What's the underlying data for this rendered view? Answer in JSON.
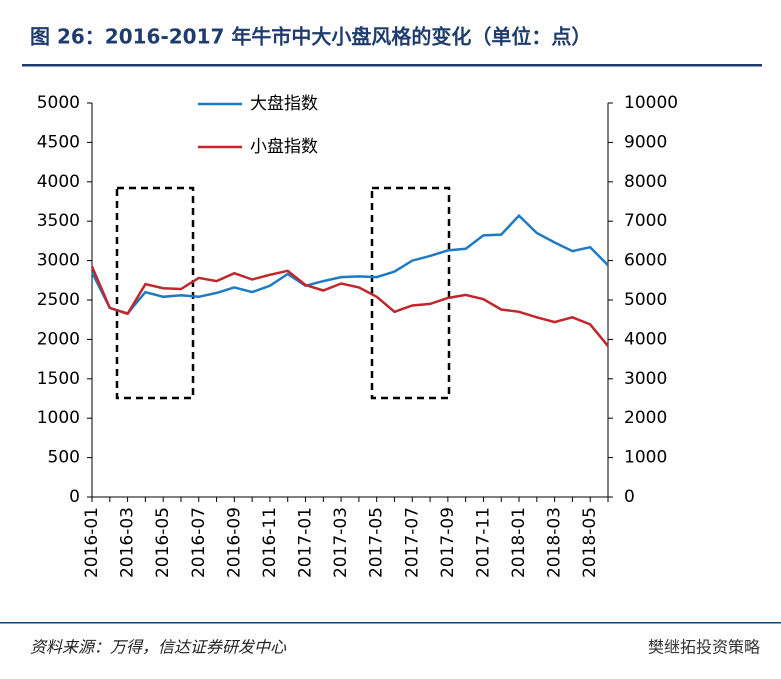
{
  "chart_data": {
    "type": "line",
    "title": "图 26：2016-2017 年牛市中大小盘风格的变化（单位：点）",
    "source": "资料来源：万得，信达证券研发中心",
    "watermark": "樊继拓投资策略",
    "categories": [
      "2016-01",
      null,
      "2016-03",
      null,
      "2016-05",
      null,
      "2016-07",
      null,
      "2016-09",
      null,
      "2016-11",
      null,
      "2017-01",
      null,
      "2017-03",
      null,
      "2017-05",
      null,
      "2017-07",
      null,
      "2017-09",
      null,
      "2017-11",
      null,
      "2018-01",
      null,
      "2018-03",
      null,
      "2018-05",
      null
    ],
    "series": [
      {
        "name": "大盘指数",
        "color": "#1f7bc1",
        "values": [
          2850,
          2400,
          2330,
          2600,
          2540,
          2560,
          2540,
          2590,
          2660,
          2600,
          2680,
          2830,
          2680,
          2740,
          2790,
          2800,
          2790,
          2860,
          3000,
          3060,
          3130,
          3150,
          3320,
          3330,
          3570,
          3350,
          3230,
          3120,
          3170,
          2940
        ]
      },
      {
        "name": "小盘指数",
        "color": "#c0262b",
        "axis": "y2",
        "values": [
          5850,
          4800,
          4650,
          5400,
          5300,
          5280,
          5560,
          5480,
          5680,
          5520,
          5640,
          5740,
          5380,
          5240,
          5420,
          5320,
          5080,
          4700,
          4860,
          4900,
          5050,
          5130,
          5020,
          4760,
          4700,
          4560,
          4440,
          4560,
          4380,
          3830
        ]
      }
    ],
    "ylim": [
      0,
      5000
    ],
    "yticks": [
      0,
      500,
      1000,
      1500,
      2000,
      2500,
      3000,
      3500,
      4000,
      4500,
      5000
    ],
    "y2lim": [
      0,
      10000
    ],
    "y2ticks": [
      0,
      1000,
      2000,
      3000,
      4000,
      5000,
      6000,
      7000,
      8000,
      9000,
      10000
    ],
    "legend": "top-left"
  }
}
